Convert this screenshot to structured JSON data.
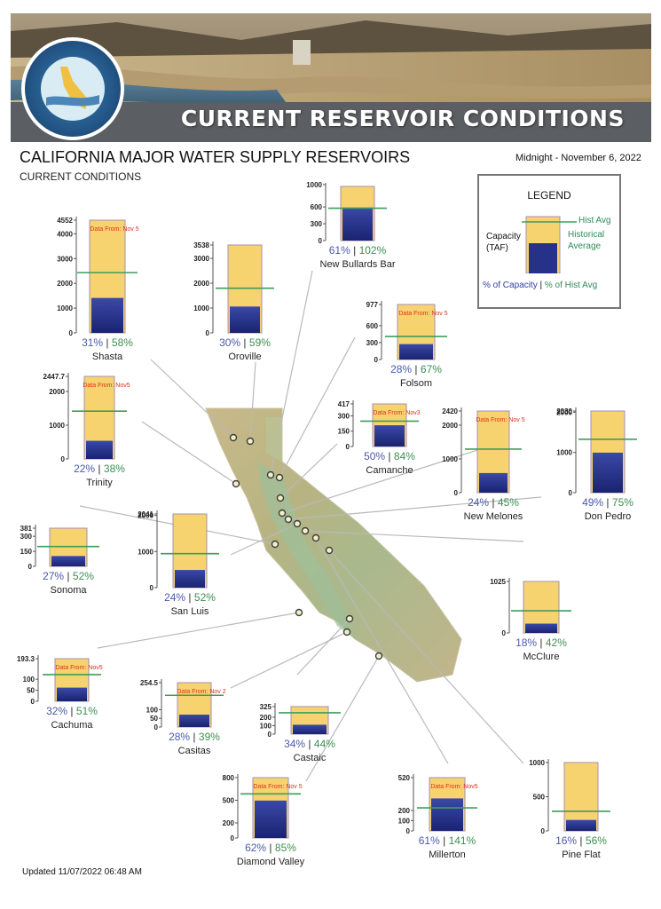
{
  "banner": {
    "title": "CURRENT RESERVOIR CONDITIONS",
    "seal": "DEPARTMENT OF WATER RESOURCES · STATE OF CALIFORNIA"
  },
  "header": {
    "title": "CALIFORNIA MAJOR WATER SUPPLY RESERVOIRS",
    "subtitle": "CURRENT CONDITIONS",
    "timestamp": "Midnight - November 6, 2022"
  },
  "legend": {
    "title": "LEGEND",
    "capacity_label": "Capacity\n(TAF)",
    "hist_avg_label": "Hist Avg",
    "historical_average_label": "Historical\nAverage",
    "pct_capacity_label": "% of Capacity",
    "pct_hist_label": "% of Hist Avg",
    "separator": "|"
  },
  "footer": {
    "updated": "Updated 11/07/2022 06:48 AM"
  },
  "colors": {
    "capacity_fill": "#f7d36f",
    "storage_top": "#3a49a8",
    "storage_bottom": "#1a2370",
    "hist_line": "#3f9d5a",
    "pct_capacity": "#4a5aa8",
    "pct_hist": "#3e8e52",
    "data_from": "#e0301e"
  },
  "chart_data": [
    {
      "type": "bar",
      "name": "Shasta",
      "capacity": 4552,
      "storage": 1411,
      "hist_avg": 2433,
      "ticks": [
        "4552",
        "4000",
        "3000",
        "2000",
        "1000",
        "0"
      ],
      "tick_values": [
        4552,
        4000,
        3000,
        2000,
        1000,
        0
      ],
      "pct_capacity": "31%",
      "pct_hist": "58%",
      "note": "Data From: Nov 5"
    },
    {
      "type": "bar",
      "name": "Oroville",
      "capacity": 3538,
      "storage": 1061,
      "hist_avg": 1798,
      "ticks": [
        "3538",
        "3000",
        "2000",
        "1000",
        "0"
      ],
      "tick_values": [
        3538,
        3000,
        2000,
        1000,
        0
      ],
      "pct_capacity": "30%",
      "pct_hist": "59%",
      "note": ""
    },
    {
      "type": "bar",
      "name": "New Bullards Bar",
      "capacity": 966,
      "storage": 589,
      "hist_avg": 577,
      "ticks": [
        "1000",
        "600",
        "300",
        "0"
      ],
      "tick_values": [
        1000,
        600,
        300,
        0
      ],
      "pct_capacity": "61%",
      "pct_hist": "102%",
      "note": ""
    },
    {
      "type": "bar",
      "name": "Folsom",
      "capacity": 977,
      "storage": 274,
      "hist_avg": 409,
      "ticks": [
        "977",
        "600",
        "300",
        "0"
      ],
      "tick_values": [
        977,
        600,
        300,
        0
      ],
      "pct_capacity": "28%",
      "pct_hist": "67%",
      "note": "Data From: Nov 5"
    },
    {
      "type": "bar",
      "name": "Trinity",
      "capacity": 2447.7,
      "storage": 538,
      "hist_avg": 1417,
      "ticks": [
        "2447.7",
        "2000",
        "1000",
        "0"
      ],
      "tick_values": [
        2447.7,
        2000,
        1000,
        0
      ],
      "pct_capacity": "22%",
      "pct_hist": "38%",
      "note": "Data From: Nov5"
    },
    {
      "type": "bar",
      "name": "Camanche",
      "capacity": 417,
      "storage": 208,
      "hist_avg": 248,
      "ticks": [
        "417",
        "300",
        "150",
        "0"
      ],
      "tick_values": [
        417,
        300,
        150,
        0
      ],
      "pct_capacity": "50%",
      "pct_hist": "84%",
      "note": "Data From: Nov3"
    },
    {
      "type": "bar",
      "name": "New Melones",
      "capacity": 2420,
      "storage": 581,
      "hist_avg": 1291,
      "ticks": [
        "2420",
        "2000",
        "1000",
        "0"
      ],
      "tick_values": [
        2420,
        2000,
        1000,
        0
      ],
      "pct_capacity": "24%",
      "pct_hist": "45%",
      "note": "Data From: Nov 5"
    },
    {
      "type": "bar",
      "name": "Don Pedro",
      "capacity": 2030,
      "storage": 995,
      "hist_avg": 1327,
      "ticks": [
        "2030",
        "2000",
        "1000",
        "0"
      ],
      "tick_values": [
        2030,
        2000,
        1000,
        0
      ],
      "pct_capacity": "49%",
      "pct_hist": "75%",
      "note": ""
    },
    {
      "type": "bar",
      "name": "Sonoma",
      "capacity": 381,
      "storage": 103,
      "hist_avg": 198,
      "ticks": [
        "381",
        "300",
        "150",
        "0"
      ],
      "tick_values": [
        381,
        300,
        150,
        0
      ],
      "pct_capacity": "27%",
      "pct_hist": "52%",
      "note": ""
    },
    {
      "type": "bar",
      "name": "San Luis",
      "capacity": 2041,
      "storage": 490,
      "hist_avg": 942,
      "ticks": [
        "2041",
        "2000",
        "1000",
        "0"
      ],
      "tick_values": [
        2041,
        2000,
        1000,
        0
      ],
      "pct_capacity": "24%",
      "pct_hist": "52%",
      "note": ""
    },
    {
      "type": "bar",
      "name": "McClure",
      "capacity": 1025,
      "storage": 185,
      "hist_avg": 440,
      "ticks": [
        "1025",
        "0"
      ],
      "tick_values": [
        1025,
        0
      ],
      "pct_capacity": "18%",
      "pct_hist": "42%",
      "note": ""
    },
    {
      "type": "bar",
      "name": "Cachuma",
      "capacity": 193.3,
      "storage": 62,
      "hist_avg": 121,
      "ticks": [
        "193.3",
        "100",
        "50",
        "0"
      ],
      "tick_values": [
        193.3,
        100,
        50,
        0
      ],
      "pct_capacity": "32%",
      "pct_hist": "51%",
      "note": "Data From: Nov5"
    },
    {
      "type": "bar",
      "name": "Casitas",
      "capacity": 254.5,
      "storage": 71,
      "hist_avg": 182,
      "ticks": [
        "254.5",
        "100",
        "50",
        "0"
      ],
      "tick_values": [
        254.5,
        100,
        50,
        0
      ],
      "pct_capacity": "28%",
      "pct_hist": "39%",
      "note": "Data From: Nov 2"
    },
    {
      "type": "bar",
      "name": "Castaic",
      "capacity": 325,
      "storage": 111,
      "hist_avg": 252,
      "ticks": [
        "325",
        "200",
        "100",
        "0"
      ],
      "tick_values": [
        325,
        200,
        100,
        0
      ],
      "pct_capacity": "34%",
      "pct_hist": "44%",
      "note": ""
    },
    {
      "type": "bar",
      "name": "Diamond Valley",
      "capacity": 800,
      "storage": 496,
      "hist_avg": 584,
      "ticks": [
        "800",
        "500",
        "200",
        "0"
      ],
      "tick_values": [
        800,
        500,
        200,
        0
      ],
      "pct_capacity": "62%",
      "pct_hist": "85%",
      "note": "Data From: Nov 5"
    },
    {
      "type": "bar",
      "name": "Millerton",
      "capacity": 520,
      "storage": 317,
      "hist_avg": 225,
      "ticks": [
        "520",
        "200",
        "100",
        "0"
      ],
      "tick_values": [
        520,
        200,
        100,
        0
      ],
      "pct_capacity": "61%",
      "pct_hist": "141%",
      "note": "Data From: Nov5"
    },
    {
      "type": "bar",
      "name": "Pine Flat",
      "capacity": 1000,
      "storage": 160,
      "hist_avg": 286,
      "ticks": [
        "1000",
        "500",
        "0"
      ],
      "tick_values": [
        1000,
        500,
        0
      ],
      "pct_capacity": "16%",
      "pct_hist": "56%",
      "note": ""
    }
  ]
}
